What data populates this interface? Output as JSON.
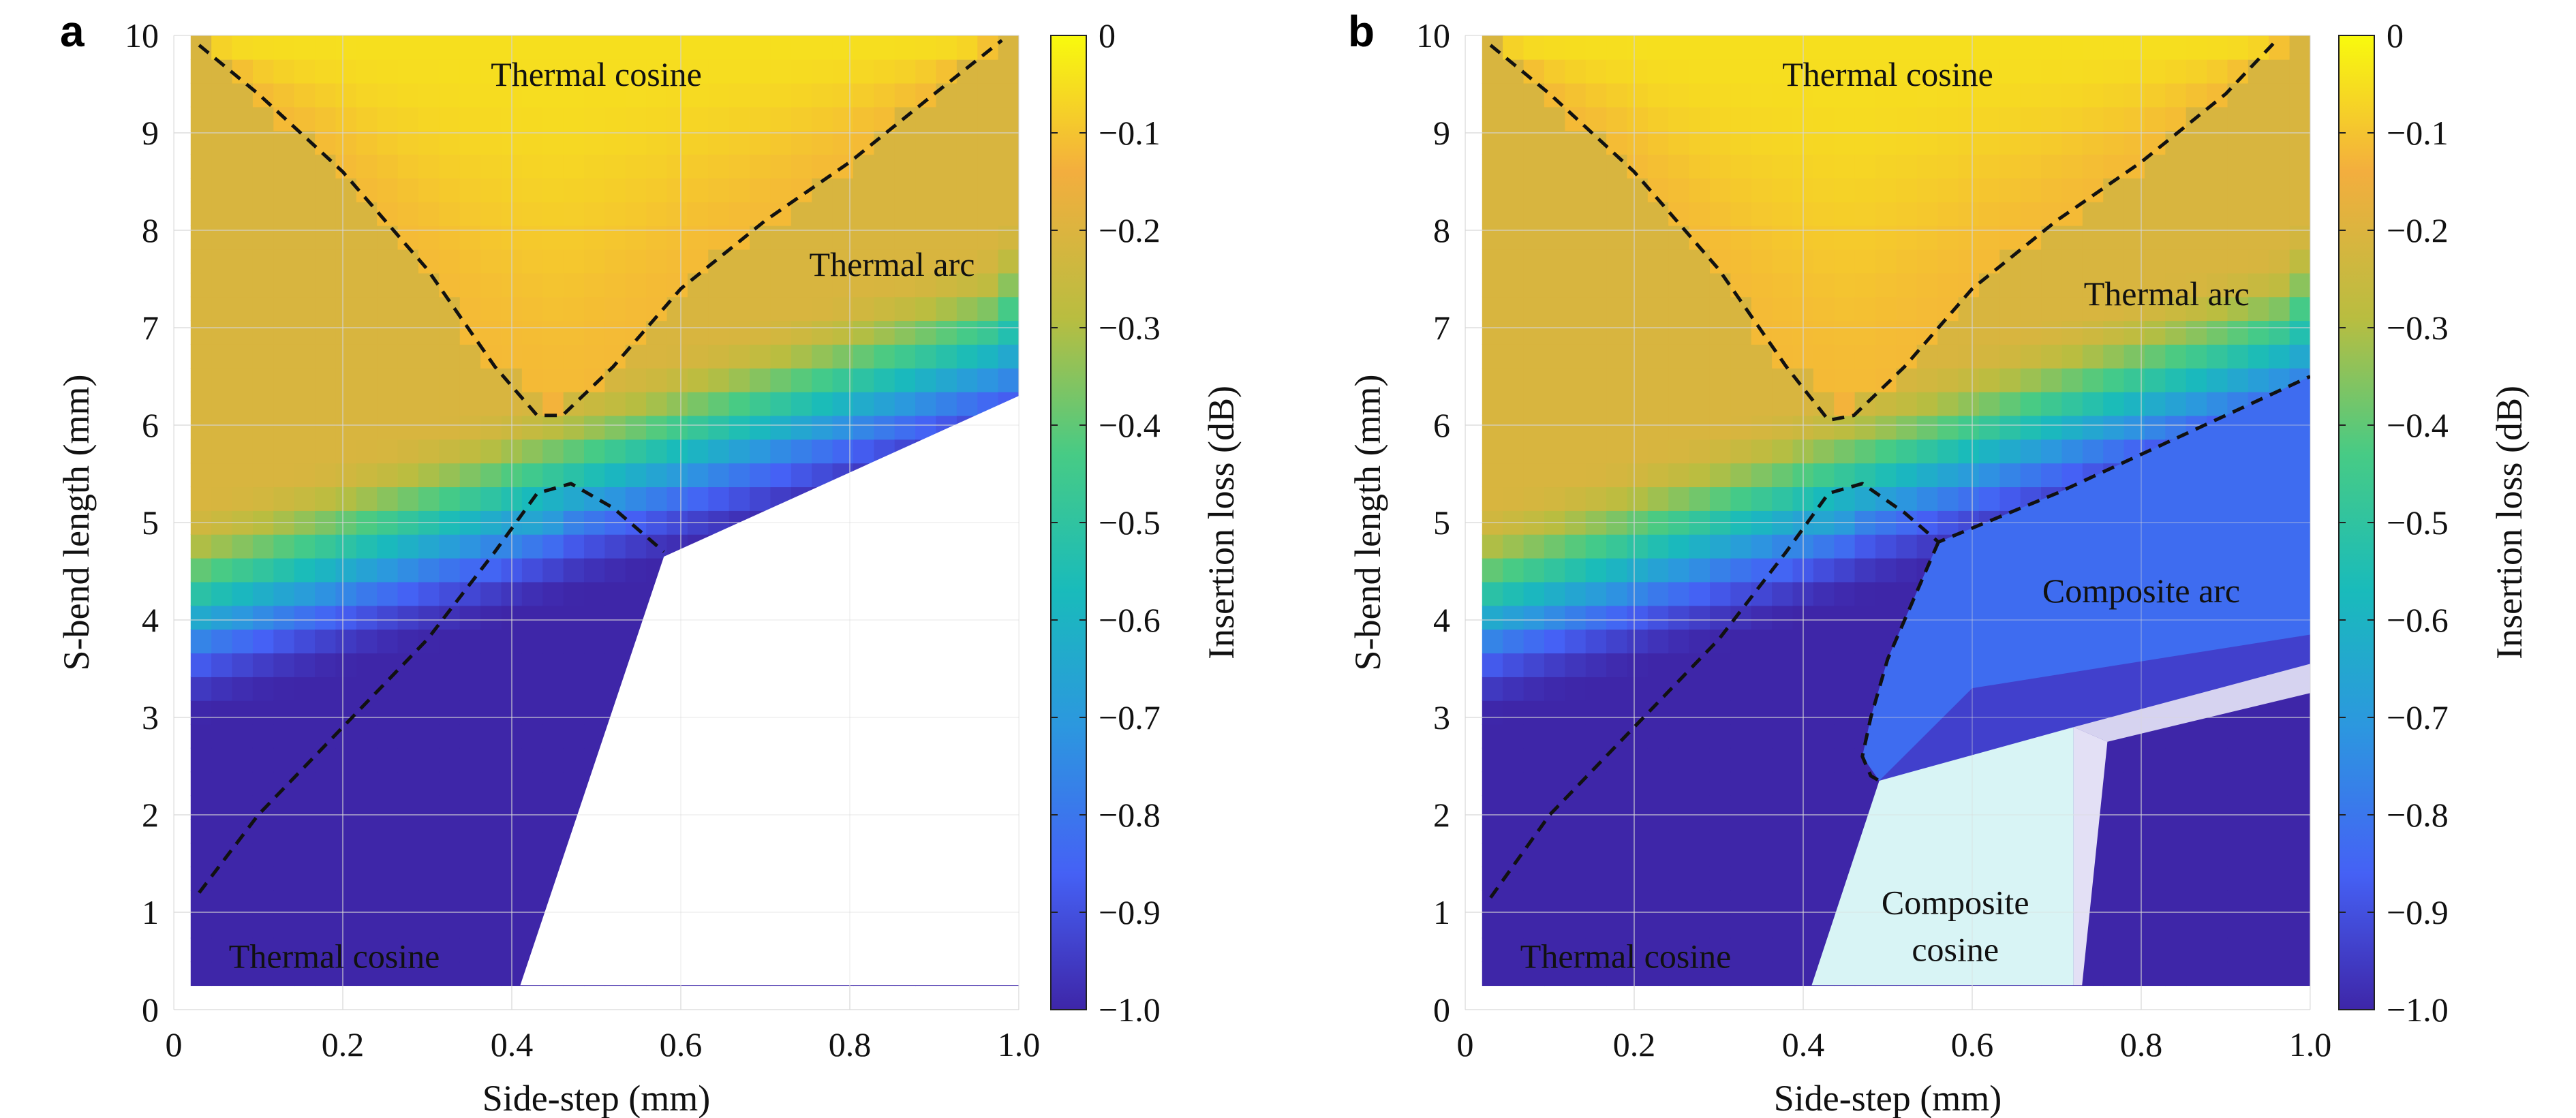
{
  "chart_data": [
    {
      "panel_label": "a",
      "type": "heatmap",
      "xlabel": "Side-step (mm)",
      "ylabel": "S-bend length (mm)",
      "xlim": [
        0,
        1.0
      ],
      "ylim": [
        0,
        10
      ],
      "xticks": [
        "0",
        "0.2",
        "0.4",
        "0.6",
        "0.8",
        "1.0"
      ],
      "yticks": [
        "0",
        "1",
        "2",
        "3",
        "4",
        "5",
        "6",
        "7",
        "8",
        "9",
        "10"
      ],
      "grid": true,
      "colorbar": {
        "label": "Insertion loss (dB)",
        "range": [
          -1.0,
          0
        ],
        "ticks": [
          "0",
          "−0.1",
          "−0.2",
          "−0.3",
          "−0.4",
          "−0.5",
          "−0.6",
          "−0.7",
          "−0.8",
          "−0.9",
          "−1.0"
        ],
        "colormap": [
          "#3e26a8",
          "#4561f5",
          "#2c97df",
          "#19bbbb",
          "#47cb85",
          "#b9bd40",
          "#f3ae3e",
          "#f8fa0d"
        ]
      },
      "regions": [
        {
          "label": "Thermal cosine",
          "x": 0.5,
          "y": 9.6
        },
        {
          "label": "Thermal arc",
          "x": 0.85,
          "y": 7.65
        },
        {
          "label": "Thermal cosine",
          "x": 0.19,
          "y": 0.55
        }
      ],
      "boundaries": [
        {
          "name": "upper",
          "x": [
            0.03,
            0.1,
            0.2,
            0.3,
            0.38,
            0.43,
            0.46,
            0.52,
            0.6,
            0.7,
            0.8,
            0.9,
            0.98
          ],
          "y": [
            9.9,
            9.4,
            8.6,
            7.6,
            6.6,
            6.1,
            6.1,
            6.6,
            7.4,
            8.1,
            8.7,
            9.4,
            9.95
          ]
        },
        {
          "name": "lower",
          "x": [
            0.03,
            0.1,
            0.2,
            0.3,
            0.38,
            0.43,
            0.47,
            0.52,
            0.58
          ],
          "y": [
            1.2,
            2.0,
            2.9,
            3.8,
            4.7,
            5.3,
            5.4,
            5.15,
            4.7
          ]
        }
      ],
      "masks": [
        {
          "name": "white-area",
          "x": [
            0.41,
            0.58,
            1.0,
            1.0,
            0.41
          ],
          "y": [
            0.25,
            4.65,
            6.3,
            0.25,
            0.25
          ],
          "color": "#ffffff",
          "opacity": 1.0
        }
      ]
    },
    {
      "panel_label": "b",
      "type": "heatmap",
      "xlabel": "Side-step (mm)",
      "ylabel": "S-bend length (mm)",
      "xlim": [
        0,
        1.0
      ],
      "ylim": [
        0,
        10
      ],
      "xticks": [
        "0",
        "0.2",
        "0.4",
        "0.6",
        "0.8",
        "1.0"
      ],
      "yticks": [
        "0",
        "1",
        "2",
        "3",
        "4",
        "5",
        "6",
        "7",
        "8",
        "9",
        "10"
      ],
      "grid": true,
      "colorbar": {
        "label": "Insertion loss (dB)",
        "range": [
          -1.0,
          0
        ],
        "ticks": [
          "0",
          "−0.1",
          "−0.2",
          "−0.3",
          "−0.4",
          "−0.5",
          "−0.6",
          "−0.7",
          "−0.8",
          "−0.9",
          "−1.0"
        ],
        "colormap": [
          "#3e26a8",
          "#4561f5",
          "#2c97df",
          "#19bbbb",
          "#47cb85",
          "#b9bd40",
          "#f3ae3e",
          "#f8fa0d"
        ]
      },
      "regions": [
        {
          "label": "Thermal cosine",
          "x": 0.5,
          "y": 9.6
        },
        {
          "label": "Thermal arc",
          "x": 0.83,
          "y": 7.35
        },
        {
          "label": "Composite arc",
          "x": 0.8,
          "y": 4.3
        },
        {
          "label": "Composite",
          "x": 0.58,
          "y": 1.1
        },
        {
          "label": "cosine",
          "x": 0.58,
          "y": 0.62
        },
        {
          "label": "Thermal cosine",
          "x": 0.19,
          "y": 0.55
        }
      ],
      "boundaries": [
        {
          "name": "upper",
          "x": [
            0.03,
            0.1,
            0.2,
            0.3,
            0.38,
            0.43,
            0.46,
            0.52,
            0.6,
            0.7,
            0.8,
            0.9,
            0.96
          ],
          "y": [
            9.9,
            9.4,
            8.6,
            7.6,
            6.6,
            6.05,
            6.1,
            6.6,
            7.4,
            8.1,
            8.7,
            9.4,
            9.95
          ]
        },
        {
          "name": "lower",
          "x": [
            0.03,
            0.1,
            0.2,
            0.3,
            0.38,
            0.43,
            0.47,
            0.52,
            0.56,
            0.7,
            0.85,
            1.0
          ],
          "y": [
            1.15,
            2.0,
            2.9,
            3.8,
            4.7,
            5.3,
            5.4,
            5.1,
            4.8,
            5.3,
            5.9,
            6.5
          ]
        },
        {
          "name": "inner",
          "x": [
            0.56,
            0.53,
            0.5,
            0.48,
            0.47,
            0.48,
            0.49
          ],
          "y": [
            4.8,
            4.2,
            3.6,
            3.0,
            2.6,
            2.4,
            2.35
          ]
        }
      ],
      "masks": [
        {
          "name": "composite-arc-area",
          "x": [
            0.56,
            0.7,
            0.85,
            1.0,
            1.0,
            0.49,
            0.47,
            0.48,
            0.5,
            0.53,
            0.56
          ],
          "y": [
            4.8,
            5.3,
            5.9,
            6.5,
            3.55,
            2.35,
            2.6,
            3.0,
            3.6,
            4.2,
            4.8
          ],
          "color": "#3e6cf0",
          "opacity": 1.0
        },
        {
          "name": "composite-arc-dark",
          "x": [
            0.49,
            1.0,
            1.0,
            0.6,
            0.49
          ],
          "y": [
            2.35,
            3.55,
            3.85,
            3.3,
            2.35
          ],
          "color": "#4238c6",
          "opacity": 0.85
        },
        {
          "name": "composite-cosine-area",
          "x": [
            0.41,
            0.49,
            0.72,
            0.72,
            0.41
          ],
          "y": [
            0.25,
            2.35,
            2.9,
            0.25,
            0.25
          ],
          "color": "#d8f4f5",
          "opacity": 1.0
        },
        {
          "name": "faint-upper",
          "x": [
            0.72,
            1.0,
            1.0,
            0.76,
            0.72
          ],
          "y": [
            2.9,
            3.55,
            3.25,
            2.75,
            2.9
          ],
          "color": "#d6d3f0",
          "opacity": 1.0
        },
        {
          "name": "faint-lower",
          "x": [
            0.72,
            0.76,
            0.73,
            0.72
          ],
          "y": [
            2.9,
            2.75,
            0.25,
            0.25
          ],
          "color": "#e3e0f5",
          "opacity": 1.0
        }
      ]
    }
  ]
}
